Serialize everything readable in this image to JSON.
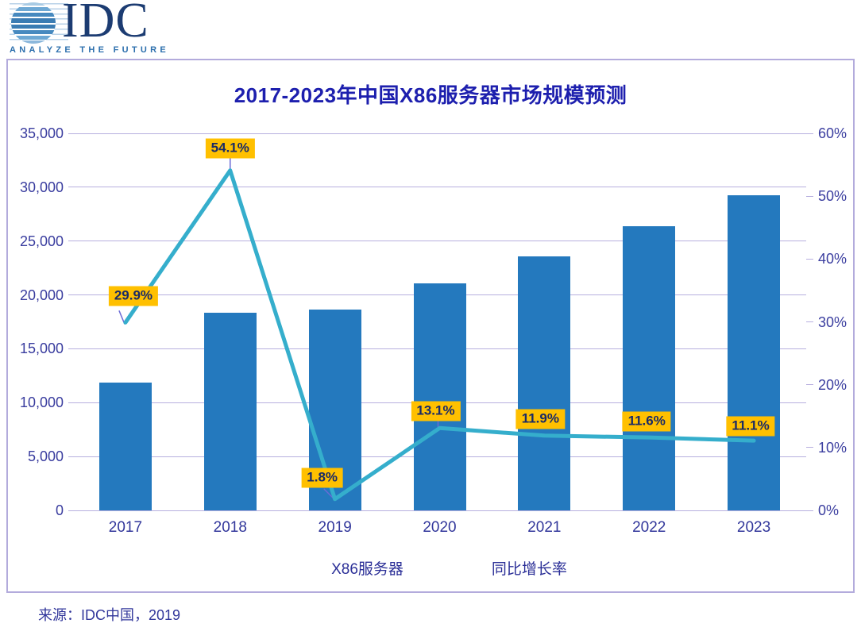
{
  "logo": {
    "name": "IDC",
    "tagline": "ANALYZE THE FUTURE"
  },
  "chart": {
    "title": "2017-2023年中国X86服务器市场规模预测",
    "source": "来源：IDC中国，2019"
  },
  "chart_data": {
    "type": "bar+line",
    "title": "2017-2023年中国X86服务器市场规模预测",
    "categories": [
      "2017",
      "2018",
      "2019",
      "2020",
      "2021",
      "2022",
      "2023"
    ],
    "series": [
      {
        "name": "X86服务器",
        "type": "bar",
        "axis": "left",
        "values": [
          11900,
          18350,
          18650,
          21100,
          23600,
          26350,
          29250
        ]
      },
      {
        "name": "同比增长率",
        "type": "line",
        "axis": "right",
        "values": [
          29.9,
          54.1,
          1.8,
          13.1,
          11.9,
          11.6,
          11.1
        ],
        "labels": [
          "29.9%",
          "54.1%",
          "1.8%",
          "13.1%",
          "11.9%",
          "11.6%",
          "11.1%"
        ]
      }
    ],
    "left_axis": {
      "min": 0,
      "max": 35000,
      "step": 5000,
      "ticks": [
        "0",
        "5,000",
        "10,000",
        "15,000",
        "20,000",
        "25,000",
        "30,000",
        "35,000"
      ]
    },
    "right_axis": {
      "min": 0,
      "max": 60,
      "step": 10,
      "ticks": [
        "0%",
        "10%",
        "20%",
        "30%",
        "40%",
        "50%",
        "60%"
      ]
    },
    "grid": true,
    "legend_position": "bottom"
  },
  "colors": {
    "bar": "#2479be",
    "line": "#35aecc",
    "leader": "#6b6bd6",
    "label_bg": "#ffc000",
    "label_text": "#1a2a66",
    "grid": "#b7afdf",
    "frame_border": "#b3abdc",
    "axis_text": "#3a3d9f",
    "title_text": "#1d1fae",
    "legend_text": "#2b2f97",
    "source_text": "#32379b",
    "logo_navy": "#1c3c72",
    "logo_blue": "#2c6fad"
  }
}
